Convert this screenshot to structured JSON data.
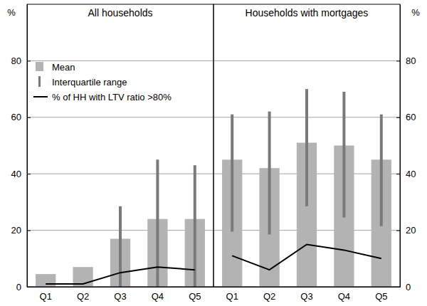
{
  "chart_data": [
    {
      "type": "bar",
      "title": "All households",
      "y_label": "%",
      "categories": [
        "Q1",
        "Q2",
        "Q3",
        "Q4",
        "Q5"
      ],
      "ylim": [
        0,
        100
      ],
      "yticks": [
        0,
        20,
        40,
        60,
        80
      ],
      "grid": true,
      "legend": "top-left",
      "series": [
        {
          "name": "Mean",
          "type": "bar",
          "color": "#b3b3b3",
          "values": [
            4.5,
            7,
            17,
            24,
            24
          ]
        },
        {
          "name": "Interquartile range",
          "type": "range",
          "color": "#7a7a7a",
          "low": [
            null,
            null,
            0,
            0,
            0
          ],
          "high": [
            null,
            null,
            28.5,
            45,
            43
          ]
        },
        {
          "name": "% of HH with LTV ratio >80%",
          "type": "line",
          "color": "#000000",
          "values": [
            1,
            1,
            5,
            7,
            6
          ]
        }
      ]
    },
    {
      "type": "bar",
      "title": "Households with mortgages",
      "y_label": "%",
      "categories": [
        "Q1",
        "Q2",
        "Q3",
        "Q4",
        "Q5"
      ],
      "ylim": [
        0,
        100
      ],
      "yticks": [
        0,
        20,
        40,
        60,
        80
      ],
      "grid": true,
      "series": [
        {
          "type": "bar",
          "color": "#b3b3b3",
          "values": [
            45,
            42,
            51,
            50,
            45
          ]
        },
        {
          "type": "range",
          "color": "#7a7a7a",
          "low": [
            19.5,
            18.5,
            28.5,
            24.5,
            21.5
          ],
          "high": [
            61,
            62,
            70,
            69,
            61
          ]
        },
        {
          "type": "line",
          "color": "#000000",
          "values": [
            11,
            6,
            15,
            13,
            10
          ]
        }
      ]
    }
  ]
}
